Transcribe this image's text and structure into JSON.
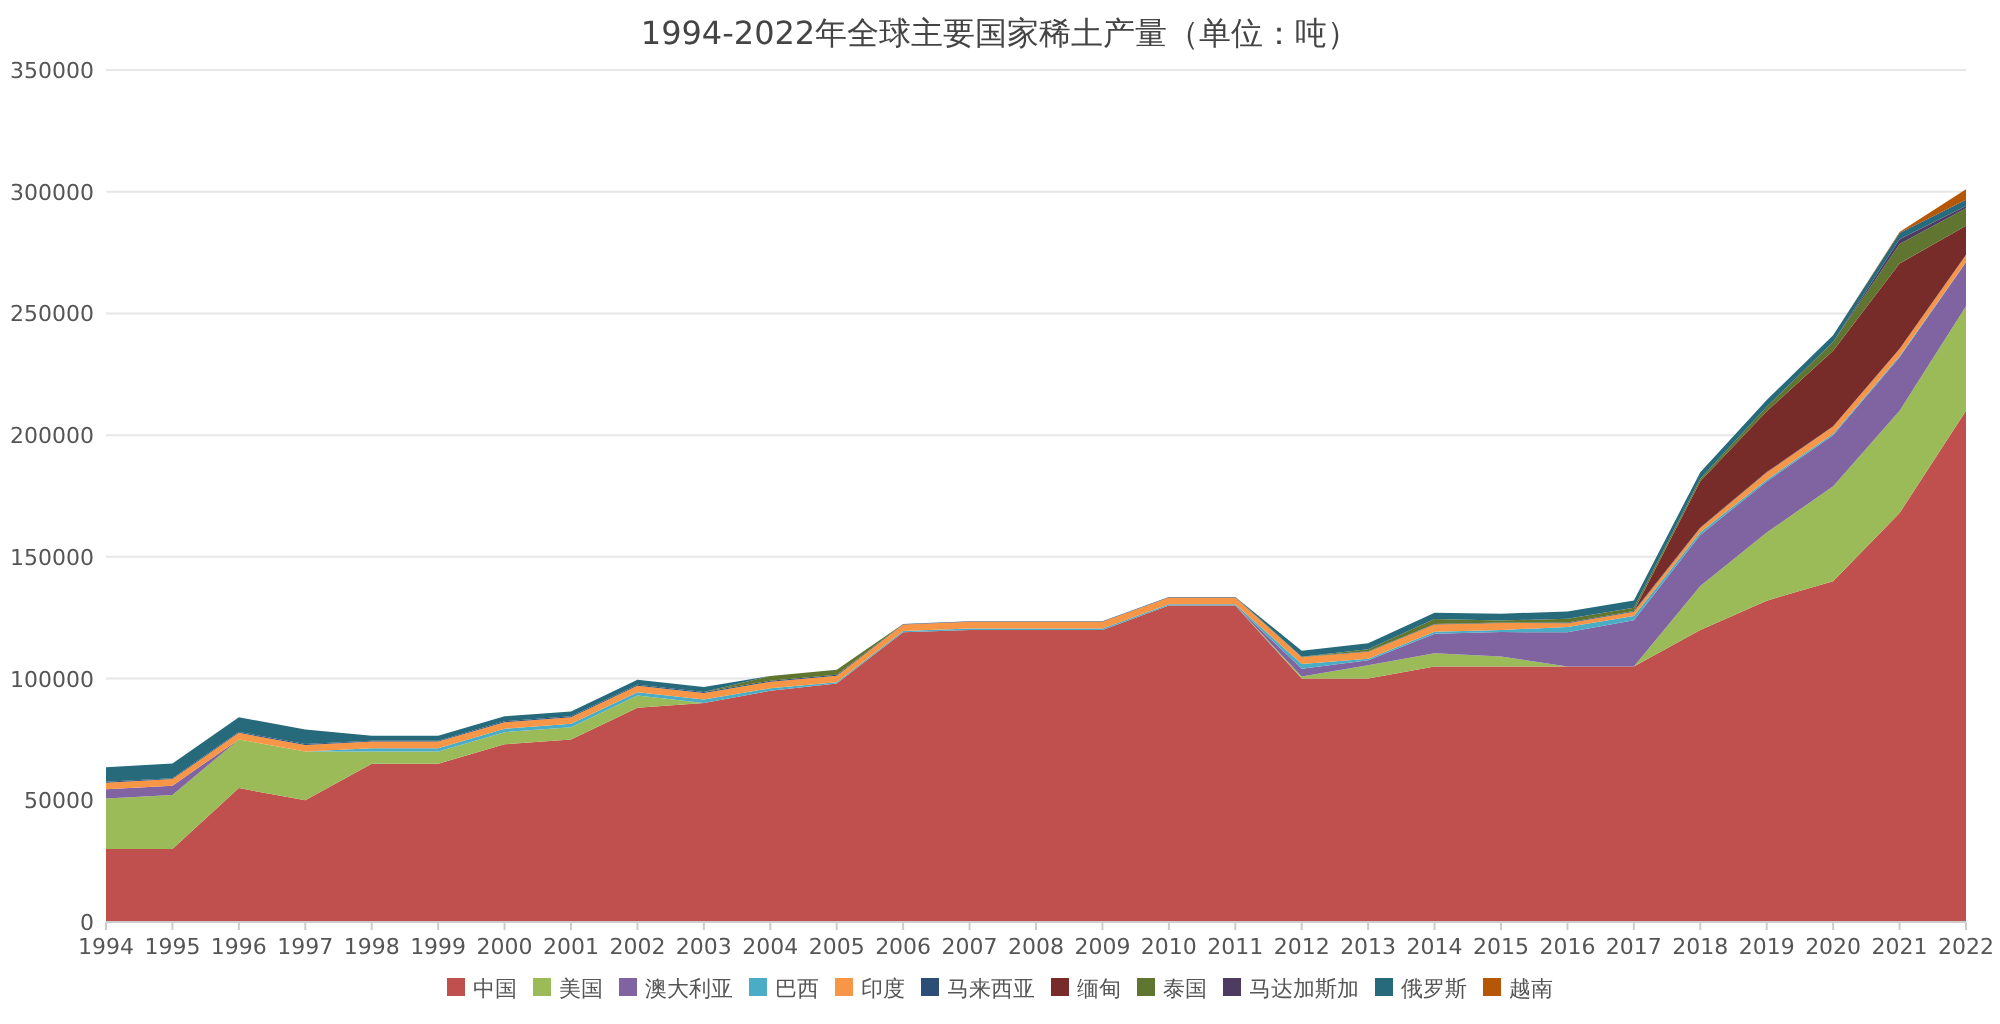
{
  "chart_data": {
    "type": "area",
    "title": "1994-2022年全球主要国家稀土产量（单位：吨）",
    "stacked": true,
    "grid": "y",
    "legend": "bottom",
    "categories": [
      "1994",
      "1995",
      "1996",
      "1997",
      "1998",
      "1999",
      "2000",
      "2001",
      "2002",
      "2003",
      "2004",
      "2005",
      "2006",
      "2007",
      "2008",
      "2009",
      "2010",
      "2011",
      "2012",
      "2013",
      "2014",
      "2015",
      "2016",
      "2017",
      "2018",
      "2019",
      "2020",
      "2021",
      "2022"
    ],
    "ylim": [
      0,
      350000
    ],
    "yticks": [
      0,
      50000,
      100000,
      150000,
      200000,
      250000,
      300000,
      350000
    ],
    "series": [
      {
        "name": "中国",
        "color": "#c0504d",
        "values": [
          30000,
          30000,
          55000,
          50000,
          65000,
          65000,
          73000,
          75000,
          88000,
          90000,
          95000,
          98000,
          119000,
          120000,
          120000,
          120000,
          130000,
          130000,
          100000,
          100000,
          105000,
          105000,
          105000,
          105000,
          120000,
          132000,
          140000,
          168000,
          210000
        ]
      },
      {
        "name": "美国",
        "color": "#9bbb59",
        "values": [
          20700,
          22200,
          20000,
          20000,
          5000,
          5000,
          5000,
          5000,
          5000,
          0,
          0,
          0,
          0,
          0,
          0,
          0,
          0,
          0,
          800,
          5500,
          5400,
          4100,
          0,
          0,
          18000,
          28000,
          39000,
          42000,
          43000
        ]
      },
      {
        "name": "澳大利亚",
        "color": "#8064a2",
        "values": [
          3800,
          3800,
          0,
          0,
          0,
          0,
          0,
          0,
          0,
          0,
          0,
          0,
          0,
          0,
          0,
          0,
          0,
          0,
          3200,
          2000,
          8000,
          10000,
          14000,
          19000,
          21000,
          21000,
          21000,
          22000,
          18000
        ]
      },
      {
        "name": "巴西",
        "color": "#4bacc6",
        "values": [
          0,
          0,
          0,
          0,
          1400,
          1400,
          1400,
          1400,
          1400,
          1400,
          1000,
          500,
          500,
          600,
          600,
          600,
          550,
          550,
          2000,
          600,
          880,
          880,
          2200,
          1700,
          1100,
          710,
          600,
          500,
          80
        ]
      },
      {
        "name": "印度",
        "color": "#f79646",
        "values": [
          2700,
          2700,
          2700,
          2700,
          2700,
          2700,
          2700,
          2700,
          2700,
          2700,
          2700,
          2700,
          2700,
          2700,
          2700,
          2700,
          2800,
          2800,
          2900,
          2900,
          2900,
          2900,
          1500,
          1800,
          1800,
          2900,
          2900,
          2900,
          2900
        ]
      },
      {
        "name": "马来西亚",
        "color": "#2c4d75",
        "values": [
          400,
          400,
          400,
          400,
          400,
          400,
          400,
          400,
          400,
          400,
          400,
          400,
          200,
          200,
          200,
          200,
          200,
          200,
          100,
          200,
          240,
          200,
          300,
          300,
          200,
          200,
          200,
          80,
          80
        ]
      },
      {
        "name": "缅甸",
        "color": "#772c2a",
        "values": [
          0,
          0,
          0,
          0,
          0,
          0,
          0,
          0,
          0,
          0,
          0,
          0,
          0,
          0,
          0,
          0,
          0,
          0,
          0,
          0,
          0,
          0,
          0,
          0,
          19000,
          25000,
          31000,
          35000,
          12000
        ]
      },
      {
        "name": "泰国",
        "color": "#5f7530",
        "values": [
          0,
          0,
          0,
          0,
          0,
          0,
          0,
          0,
          0,
          0,
          2000,
          2000,
          0,
          0,
          0,
          0,
          0,
          0,
          0,
          800,
          2100,
          760,
          1600,
          1300,
          1000,
          1900,
          3600,
          8000,
          7100
        ]
      },
      {
        "name": "马达加斯加",
        "color": "#4d3b62",
        "values": [
          0,
          0,
          0,
          0,
          0,
          0,
          0,
          0,
          0,
          0,
          0,
          0,
          0,
          0,
          0,
          0,
          0,
          0,
          0,
          0,
          0,
          0,
          0,
          0,
          0,
          0,
          0,
          2000,
          960
        ]
      },
      {
        "name": "俄罗斯",
        "color": "#276a7c",
        "values": [
          6000,
          6000,
          6000,
          6000,
          2000,
          2000,
          2000,
          2000,
          2000,
          2000,
          0,
          0,
          0,
          0,
          0,
          0,
          0,
          0,
          2400,
          2500,
          2500,
          2800,
          3000,
          3000,
          2700,
          2700,
          2700,
          2600,
          2600
        ]
      },
      {
        "name": "越南",
        "color": "#b65708",
        "values": [
          0,
          0,
          0,
          0,
          0,
          0,
          0,
          0,
          0,
          0,
          0,
          0,
          0,
          0,
          0,
          0,
          0,
          0,
          0,
          0,
          0,
          0,
          0,
          0,
          0,
          0,
          0,
          400,
          4300
        ]
      }
    ]
  }
}
